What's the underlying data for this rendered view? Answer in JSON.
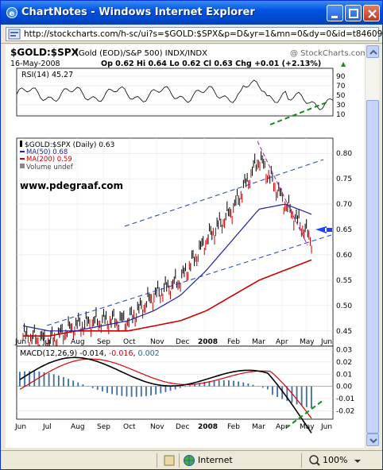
{
  "window": {
    "title": "ChartNotes - Windows Internet Explorer",
    "url": "http://stockcharts.com/h-sc/ui?s=$GOLD:$SPX&p=D&yr=1&mn=0&dy=0&id=t84609772"
  },
  "status": {
    "zone": "Internet",
    "zoom": "100%"
  },
  "colors": {
    "titlebar": "#0054e3",
    "price": "#000000",
    "ma50": "#1f1fa8",
    "ma200": "#cc0000",
    "channel": "#1f3fd0",
    "trend": "#1a8a1a",
    "arrow": "#1a44ff"
  },
  "header": {
    "symbol": "$GOLD:$SPX",
    "description": "(Gold (EOD)/S&P 500)  INDX/INDX",
    "watermark": "@ StockCharts.com",
    "date": "16-May-2008",
    "ohlc": "Op 0.62  Hi 0.64  Lo 0.62  Cl 0.63  Chg +0.01 (+2.13%)",
    "chg_arrow": "▲"
  },
  "rsi": {
    "label": "RSI(14) 45.27",
    "ticks": [
      "90",
      "70",
      "50",
      "30",
      "10"
    ]
  },
  "price_legend": {
    "title": "$GOLD:$SPX (Daily) 0.63",
    "ma50": "MA(50) 0.68",
    "ma200": "MA(200) 0.59",
    "volume": "Volume undef"
  },
  "annotation": {
    "site": "www.pdegraaf.com"
  },
  "price_ticks": [
    "0.80",
    "0.75",
    "0.70",
    "0.65",
    "0.60",
    "0.55",
    "0.50",
    "0.45"
  ],
  "macd": {
    "label_prefix": "MACD(12,26,9)",
    "v1": "-0.014",
    "v2": "-0.016",
    "v3": "0.002",
    "ticks": [
      "0.03",
      "0.02",
      "0.01",
      "0.00",
      "-0.01",
      "-0.02"
    ]
  },
  "months": [
    "Jun",
    "Jul",
    "Aug",
    "Sep",
    "Oct",
    "Nov",
    "Dec",
    "2008",
    "Feb",
    "Mar",
    "Apr",
    "May",
    "Jun"
  ],
  "chart_data": {
    "type": "line",
    "title": "$GOLD:$SPX (Daily)",
    "x": [
      "Jun",
      "Jul",
      "Aug",
      "Sep",
      "Oct",
      "Nov",
      "Dec",
      "2008",
      "Feb",
      "Mar",
      "Apr",
      "May"
    ],
    "ylim": [
      0.42,
      0.83
    ],
    "series": [
      {
        "name": "$GOLD:$SPX (Daily)",
        "values": [
          0.44,
          0.43,
          0.46,
          0.47,
          0.47,
          0.52,
          0.55,
          0.63,
          0.69,
          0.79,
          0.7,
          0.63
        ]
      },
      {
        "name": "MA(50)",
        "values": [
          0.46,
          0.45,
          0.45,
          0.46,
          0.47,
          0.49,
          0.52,
          0.57,
          0.63,
          0.69,
          0.7,
          0.68
        ]
      },
      {
        "name": "MA(200)",
        "values": [
          0.44,
          0.44,
          0.45,
          0.45,
          0.45,
          0.46,
          0.47,
          0.49,
          0.52,
          0.55,
          0.57,
          0.59
        ]
      }
    ]
  }
}
